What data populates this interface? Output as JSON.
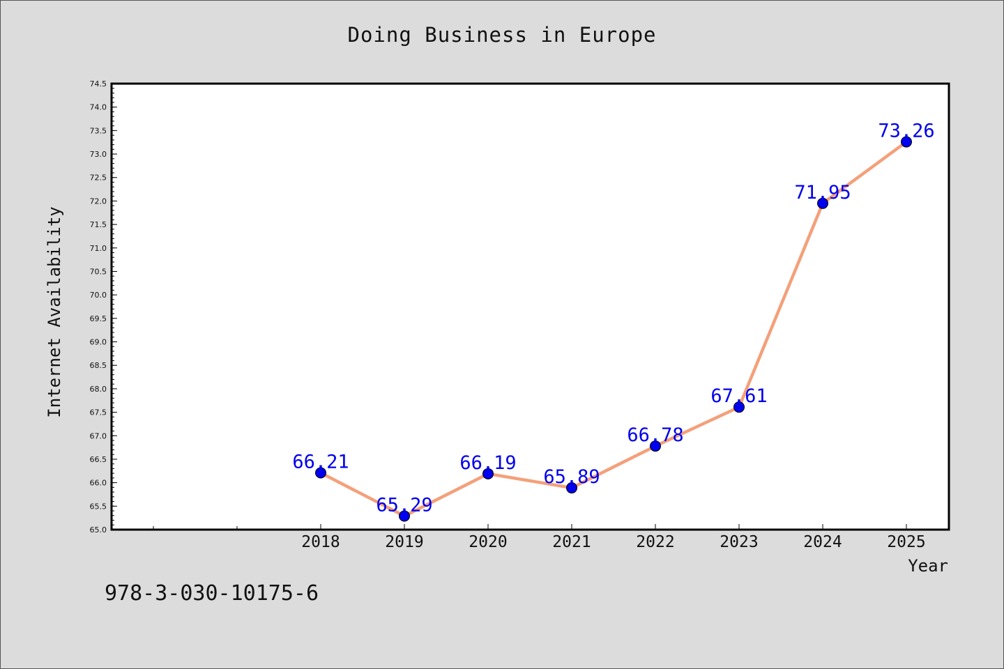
{
  "chart_data": {
    "type": "line",
    "title": "Doing Business in Europe",
    "xlabel": "Year",
    "ylabel": "Internet Availability",
    "categories": [
      "2018",
      "2019",
      "2020",
      "2021",
      "2022",
      "2023",
      "2024",
      "2025"
    ],
    "series": [
      {
        "values": [
          66.21,
          65.29,
          66.19,
          65.89,
          66.78,
          67.61,
          71.95,
          73.26
        ],
        "labels": [
          "66.21",
          "65.29",
          "66.19",
          "65.89",
          "66.78",
          "67.61",
          "71.95",
          "73.26"
        ],
        "line_color": "#f4a07a",
        "marker_color": "#0000ee"
      }
    ],
    "ylim": [
      65.0,
      74.5
    ],
    "yticks": [
      "65.0",
      "65.5",
      "66.0",
      "66.5",
      "67.0",
      "67.5",
      "68.0",
      "68.5",
      "69.0",
      "69.5",
      "70.0",
      "70.5",
      "71.0",
      "71.5",
      "72.0",
      "72.5",
      "73.0",
      "73.5",
      "74.0",
      "74.5"
    ],
    "grid": false,
    "legend": "none"
  },
  "footer": {
    "isbn": "978-3-030-10175-6"
  }
}
